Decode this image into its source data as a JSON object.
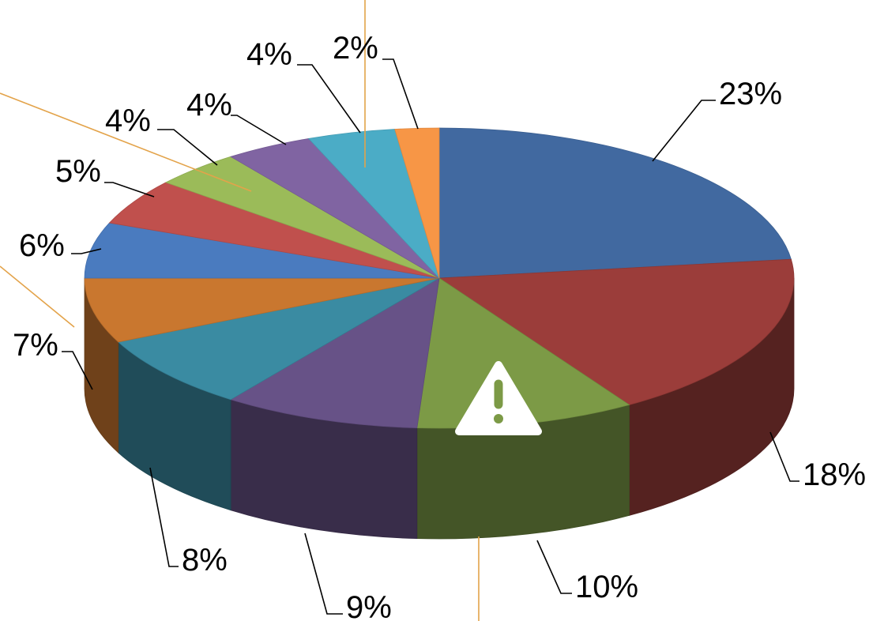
{
  "chart_data": {
    "type": "pie",
    "title": "",
    "three_d": true,
    "start_angle": "12 o'clock, clockwise",
    "slices": [
      {
        "value": 23,
        "label": "23%",
        "color": "#4169a0"
      },
      {
        "value": 18,
        "label": "18%",
        "color": "#9b3d3a"
      },
      {
        "value": 10,
        "label": "10%",
        "color": "#7c9a46"
      },
      {
        "value": 9,
        "label": "9%",
        "color": "#675287"
      },
      {
        "value": 8,
        "label": "8%",
        "color": "#3a8ba2"
      },
      {
        "value": 7,
        "label": "7%",
        "color": "#c9772f"
      },
      {
        "value": 6,
        "label": "6%",
        "color": "#4a7bbf"
      },
      {
        "value": 5,
        "label": "5%",
        "color": "#c0504d"
      },
      {
        "value": 4,
        "label": "4%",
        "color": "#9bbb59"
      },
      {
        "value": 4,
        "label": "4%",
        "color": "#8064a2"
      },
      {
        "value": 4,
        "label": "4%",
        "color": "#4bacc6"
      },
      {
        "value": 2,
        "label": "2%",
        "color": "#f79646"
      }
    ]
  },
  "annotations": {
    "warning_icon": "warning-triangle-icon",
    "warning_icon_color": "#ffffff",
    "callout_line_color": "#e3a34a"
  }
}
